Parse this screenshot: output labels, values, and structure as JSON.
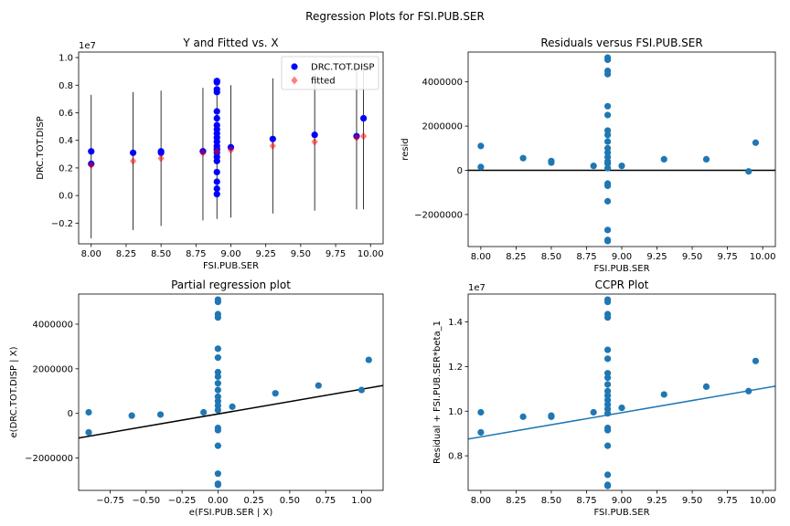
{
  "suptitle": "Regression Plots for FSI.PUB.SER",
  "chart_data": [
    {
      "type": "scatter",
      "title": "Y and Fitted vs. X",
      "xlabel": "FSI.PUB.SER",
      "ylabel": "DRC.TOT.DISP",
      "offset_text": "1e7",
      "xlim": [
        7.91,
        10.09
      ],
      "ylim": [
        -0.35,
        1.04
      ],
      "xticks": [
        8.0,
        8.25,
        8.5,
        8.75,
        9.0,
        9.25,
        9.5,
        9.75,
        10.0
      ],
      "xtick_labels": [
        "8.00",
        "8.25",
        "8.50",
        "8.75",
        "9.00",
        "9.25",
        "9.50",
        "9.75",
        "10.00"
      ],
      "yticks": [
        -0.2,
        0.0,
        0.2,
        0.4,
        0.6,
        0.8,
        1.0
      ],
      "ytick_labels": [
        "−0.2",
        "0.0",
        "0.2",
        "0.4",
        "0.6",
        "0.8",
        "1.0"
      ],
      "legend": {
        "position": "upper-right",
        "entries": [
          "DRC.TOT.DISP",
          "fitted"
        ]
      },
      "series": [
        {
          "name": "DRC.TOT.DISP",
          "color": "#0000ff",
          "marker": "circle",
          "points": [
            [
              8.0,
              0.32
            ],
            [
              8.0,
              0.23
            ],
            [
              8.3,
              0.31
            ],
            [
              8.5,
              0.32
            ],
            [
              8.5,
              0.31
            ],
            [
              8.8,
              0.32
            ],
            [
              8.8,
              0.32
            ],
            [
              8.9,
              0.83
            ],
            [
              8.9,
              0.82
            ],
            [
              8.9,
              0.77
            ],
            [
              8.9,
              0.75
            ],
            [
              8.9,
              0.61
            ],
            [
              8.9,
              0.56
            ],
            [
              8.9,
              0.51
            ],
            [
              8.9,
              0.48
            ],
            [
              8.9,
              0.45
            ],
            [
              8.9,
              0.42
            ],
            [
              8.9,
              0.39
            ],
            [
              8.9,
              0.36
            ],
            [
              8.9,
              0.34
            ],
            [
              8.9,
              0.33
            ],
            [
              8.9,
              0.31
            ],
            [
              8.9,
              0.28
            ],
            [
              8.9,
              0.25
            ],
            [
              8.9,
              0.17
            ],
            [
              8.9,
              0.1
            ],
            [
              8.9,
              0.05
            ],
            [
              8.9,
              0.01
            ],
            [
              9.0,
              0.35
            ],
            [
              9.3,
              0.41
            ],
            [
              9.6,
              0.44
            ],
            [
              9.9,
              0.43
            ],
            [
              9.95,
              0.56
            ]
          ]
        },
        {
          "name": "fitted",
          "color": "#ff0000",
          "marker": "diamond",
          "points": [
            [
              8.0,
              0.22
            ],
            [
              8.3,
              0.25
            ],
            [
              8.5,
              0.27
            ],
            [
              8.8,
              0.31
            ],
            [
              8.9,
              0.32
            ],
            [
              9.0,
              0.33
            ],
            [
              9.3,
              0.36
            ],
            [
              9.6,
              0.39
            ],
            [
              9.9,
              0.42
            ],
            [
              9.95,
              0.43
            ]
          ]
        }
      ],
      "error_bars": [
        [
          8.0,
          -0.31,
          0.73
        ],
        [
          8.3,
          -0.25,
          0.75
        ],
        [
          8.5,
          -0.22,
          0.76
        ],
        [
          8.8,
          -0.18,
          0.78
        ],
        [
          8.9,
          -0.17,
          0.79
        ],
        [
          9.0,
          -0.16,
          0.8
        ],
        [
          9.3,
          -0.13,
          0.85
        ],
        [
          9.6,
          -0.11,
          0.88
        ],
        [
          9.9,
          -0.1,
          0.92
        ],
        [
          9.95,
          -0.1,
          0.93
        ]
      ]
    },
    {
      "type": "scatter",
      "title": "Residuals versus FSI.PUB.SER",
      "xlabel": "FSI.PUB.SER",
      "ylabel": "resid",
      "xlim": [
        7.91,
        10.09
      ],
      "ylim": [
        -3450000,
        5350000
      ],
      "xticks": [
        8.0,
        8.25,
        8.5,
        8.75,
        9.0,
        9.25,
        9.5,
        9.75,
        10.0
      ],
      "xtick_labels": [
        "8.00",
        "8.25",
        "8.50",
        "8.75",
        "9.00",
        "9.25",
        "9.50",
        "9.75",
        "10.00"
      ],
      "yticks": [
        -2000000,
        0,
        2000000,
        4000000
      ],
      "ytick_labels": [
        "−2000000",
        "0",
        "2000000",
        "4000000"
      ],
      "zero_line": true,
      "color": "#1f77b4",
      "points": [
        [
          8.0,
          1100000
        ],
        [
          8.0,
          150000
        ],
        [
          8.3,
          550000
        ],
        [
          8.5,
          420000
        ],
        [
          8.5,
          350000
        ],
        [
          8.8,
          200000
        ],
        [
          8.9,
          5100000
        ],
        [
          8.9,
          5000000
        ],
        [
          8.9,
          4500000
        ],
        [
          8.9,
          4350000
        ],
        [
          8.9,
          2900000
        ],
        [
          8.9,
          2500000
        ],
        [
          8.9,
          1800000
        ],
        [
          8.9,
          1600000
        ],
        [
          8.9,
          1300000
        ],
        [
          8.9,
          1000000
        ],
        [
          8.9,
          800000
        ],
        [
          8.9,
          600000
        ],
        [
          8.9,
          400000
        ],
        [
          8.9,
          300000
        ],
        [
          8.9,
          100000
        ],
        [
          8.9,
          -600000
        ],
        [
          8.9,
          -700000
        ],
        [
          8.9,
          -1400000
        ],
        [
          8.9,
          -2700000
        ],
        [
          8.9,
          -3150000
        ],
        [
          8.9,
          -3200000
        ],
        [
          9.0,
          200000
        ],
        [
          9.3,
          500000
        ],
        [
          9.6,
          500000
        ],
        [
          9.9,
          -50000
        ],
        [
          9.95,
          1250000
        ]
      ]
    },
    {
      "type": "scatter",
      "title": "Partial regression plot",
      "xlabel": "e(FSI.PUB.SER | X)",
      "ylabel": "e(DRC.TOT.DISP | X)",
      "xlim": [
        -0.97,
        1.15
      ],
      "ylim": [
        -3450000,
        5350000
      ],
      "xticks": [
        -0.75,
        -0.5,
        -0.25,
        0.0,
        0.25,
        0.5,
        0.75,
        1.0
      ],
      "xtick_labels": [
        "−0.75",
        "−0.50",
        "−0.25",
        "0.00",
        "0.25",
        "0.50",
        "0.75",
        "1.00"
      ],
      "yticks": [
        -2000000,
        0,
        2000000,
        4000000
      ],
      "ytick_labels": [
        "−2000000",
        "0",
        "2000000",
        "4000000"
      ],
      "fit_line": {
        "color": "#000000",
        "points": [
          [
            -0.97,
            -1100000
          ],
          [
            1.15,
            1250000
          ]
        ]
      },
      "color": "#1f77b4",
      "points": [
        [
          -0.9,
          50000
        ],
        [
          -0.9,
          -850000
        ],
        [
          -0.6,
          -100000
        ],
        [
          -0.4,
          -50000
        ],
        [
          -0.1,
          50000
        ],
        [
          0.1,
          300000
        ],
        [
          0.0,
          5100000
        ],
        [
          0.0,
          5000000
        ],
        [
          0.0,
          4450000
        ],
        [
          0.0,
          4300000
        ],
        [
          0.0,
          2900000
        ],
        [
          0.0,
          2500000
        ],
        [
          0.0,
          1850000
        ],
        [
          0.0,
          1650000
        ],
        [
          0.0,
          1350000
        ],
        [
          0.0,
          1050000
        ],
        [
          0.0,
          750000
        ],
        [
          0.0,
          550000
        ],
        [
          0.0,
          350000
        ],
        [
          0.0,
          150000
        ],
        [
          0.0,
          -650000
        ],
        [
          0.0,
          -750000
        ],
        [
          0.0,
          -1450000
        ],
        [
          0.0,
          -2700000
        ],
        [
          0.0,
          -3150000
        ],
        [
          0.0,
          -3200000
        ],
        [
          0.4,
          900000
        ],
        [
          0.7,
          1250000
        ],
        [
          1.0,
          1050000
        ],
        [
          1.05,
          2400000
        ]
      ]
    },
    {
      "type": "scatter",
      "title": "CCPR Plot",
      "xlabel": "FSI.PUB.SER",
      "ylabel": "Residual + FSI.PUB.SER*beta_1",
      "offset_text": "1e7",
      "xlim": [
        7.91,
        10.09
      ],
      "ylim": [
        0.645,
        1.525
      ],
      "xticks": [
        8.0,
        8.25,
        8.5,
        8.75,
        9.0,
        9.25,
        9.5,
        9.75,
        10.0
      ],
      "xtick_labels": [
        "8.00",
        "8.25",
        "8.50",
        "8.75",
        "9.00",
        "9.25",
        "9.50",
        "9.75",
        "10.00"
      ],
      "yticks": [
        0.8,
        1.0,
        1.2,
        1.4
      ],
      "ytick_labels": [
        "0.8",
        "1.0",
        "1.2",
        "1.4"
      ],
      "fit_line": {
        "color": "#1f77b4",
        "points": [
          [
            7.91,
            0.875
          ],
          [
            10.09,
            1.112
          ]
        ]
      },
      "color": "#1f77b4",
      "points": [
        [
          8.0,
          0.995
        ],
        [
          8.0,
          0.905
        ],
        [
          8.3,
          0.975
        ],
        [
          8.5,
          0.98
        ],
        [
          8.5,
          0.975
        ],
        [
          8.8,
          0.995
        ],
        [
          8.9,
          1.5
        ],
        [
          8.9,
          1.49
        ],
        [
          8.9,
          1.435
        ],
        [
          8.9,
          1.42
        ],
        [
          8.9,
          1.275
        ],
        [
          8.9,
          1.235
        ],
        [
          8.9,
          1.17
        ],
        [
          8.9,
          1.15
        ],
        [
          8.9,
          1.12
        ],
        [
          8.9,
          1.09
        ],
        [
          8.9,
          1.07
        ],
        [
          8.9,
          1.05
        ],
        [
          8.9,
          1.03
        ],
        [
          8.9,
          1.01
        ],
        [
          8.9,
          0.99
        ],
        [
          8.9,
          0.925
        ],
        [
          8.9,
          0.915
        ],
        [
          8.9,
          0.845
        ],
        [
          8.9,
          0.715
        ],
        [
          8.9,
          0.67
        ],
        [
          8.9,
          0.665
        ],
        [
          9.0,
          1.015
        ],
        [
          9.3,
          1.075
        ],
        [
          9.6,
          1.11
        ],
        [
          9.9,
          1.09
        ],
        [
          9.95,
          1.225
        ]
      ]
    }
  ]
}
